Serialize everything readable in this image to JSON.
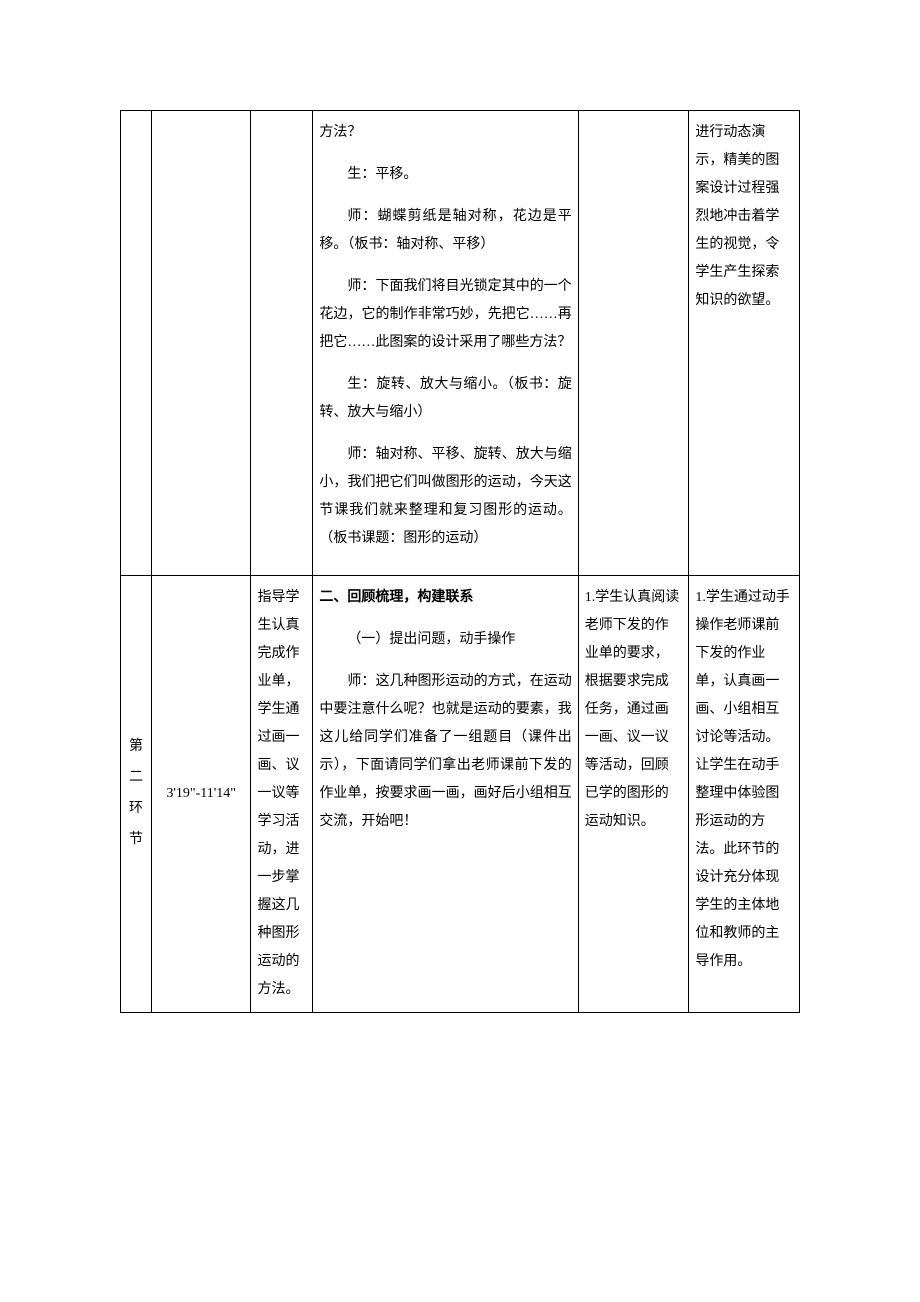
{
  "row1": {
    "col4": {
      "p1": "方法？",
      "p2": "生：平移。",
      "p3": "师：蝴蝶剪纸是轴对称，花边是平移。（板书：轴对称、平移）",
      "p4": "师：下面我们将目光锁定其中的一个花边，它的制作非常巧妙，先把它……再把它……此图案的设计采用了哪些方法？",
      "p5": "生：旋转、放大与缩小。（板书：旋转、放大与缩小）",
      "p6": "师：轴对称、平移、旋转、放大与缩小，我们把它们叫做图形的运动，今天这节课我们就来整理和复习图形的运动。（板书课题：图形的运动）"
    },
    "col6": "进行动态演示，精美的图案设计过程强烈地冲击着学生的视觉，令学生产生探索知识的欲望。"
  },
  "row2": {
    "col1": {
      "c1": "第",
      "c2": "二",
      "c3": "环",
      "c4": "节"
    },
    "col2": "3'19\"-11'14\"",
    "col3": "指导学生认真完成作业单，学生通过画一画、议一议等学习活动，进一步掌握这几种图形运动的方法。",
    "col4": {
      "heading": "二、回顾梳理，构建联系",
      "sub": "（一）提出问题，动手操作",
      "body": "师：这几种图形运动的方式，在运动中要注意什么呢？也就是运动的要素，我这儿给同学们准备了一组题目（课件出示），下面请同学们拿出老师课前下发的作业单，按要求画一画，画好后小组相互交流，开始吧！"
    },
    "col5": "1.学生认真阅读老师下发的作业单的要求，根据要求完成任务，通过画一画、议一议等活动，回顾已学的图形的运动知识。",
    "col6": "1.学生通过动手操作老师课前下发的作业单，认真画一画、小组相互讨论等活动。让学生在动手整理中体验图形运动的方法。此环节的设计充分体现学生的主体地位和教师的主导作用。"
  }
}
